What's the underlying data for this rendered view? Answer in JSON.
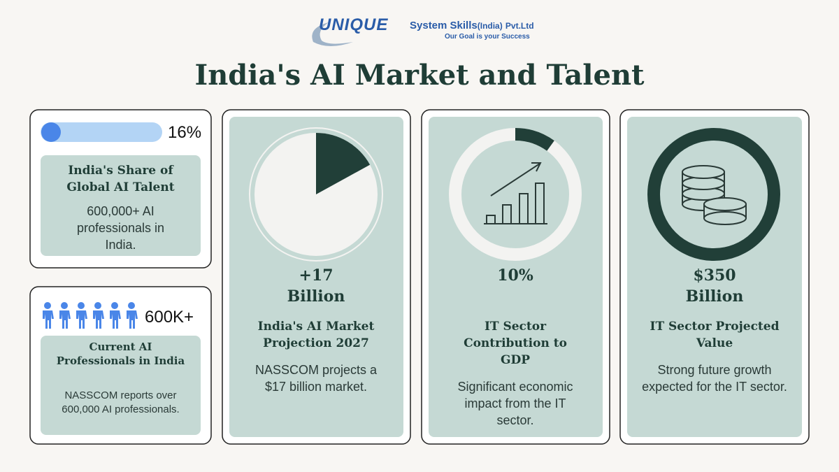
{
  "header": {
    "logo_brand": "UNIQUE",
    "logo_company": "System Skills",
    "logo_region": "(India)",
    "logo_suffix": "Pvt.Ltd",
    "tagline": "Our Goal is your Success",
    "title": "India's AI Market and Talent"
  },
  "cards": [
    {
      "stat": {
        "value": 16,
        "label": "16%"
      },
      "heading": "India's Share of Global AI Talent",
      "body": "600,000+ AI professionals in India."
    },
    {
      "stat_label": "600K+",
      "heading": "Current AI Professionals in India",
      "body": "NASSCOM reports over 600,000 AI professionals."
    },
    {
      "stat": {
        "value": 17,
        "label": "+17 Billion"
      },
      "heading": "India's AI Market Projection 2027",
      "body": "NASSCOM projects a $17 billion market."
    },
    {
      "stat": {
        "value": 10,
        "label": "10%"
      },
      "heading": "IT Sector Contribution to GDP",
      "body": "Significant economic impact from the IT sector."
    },
    {
      "stat_label": "$350 Billion",
      "heading": "IT Sector Projected Value",
      "body": "Strong future growth expected for the IT sector."
    }
  ]
}
